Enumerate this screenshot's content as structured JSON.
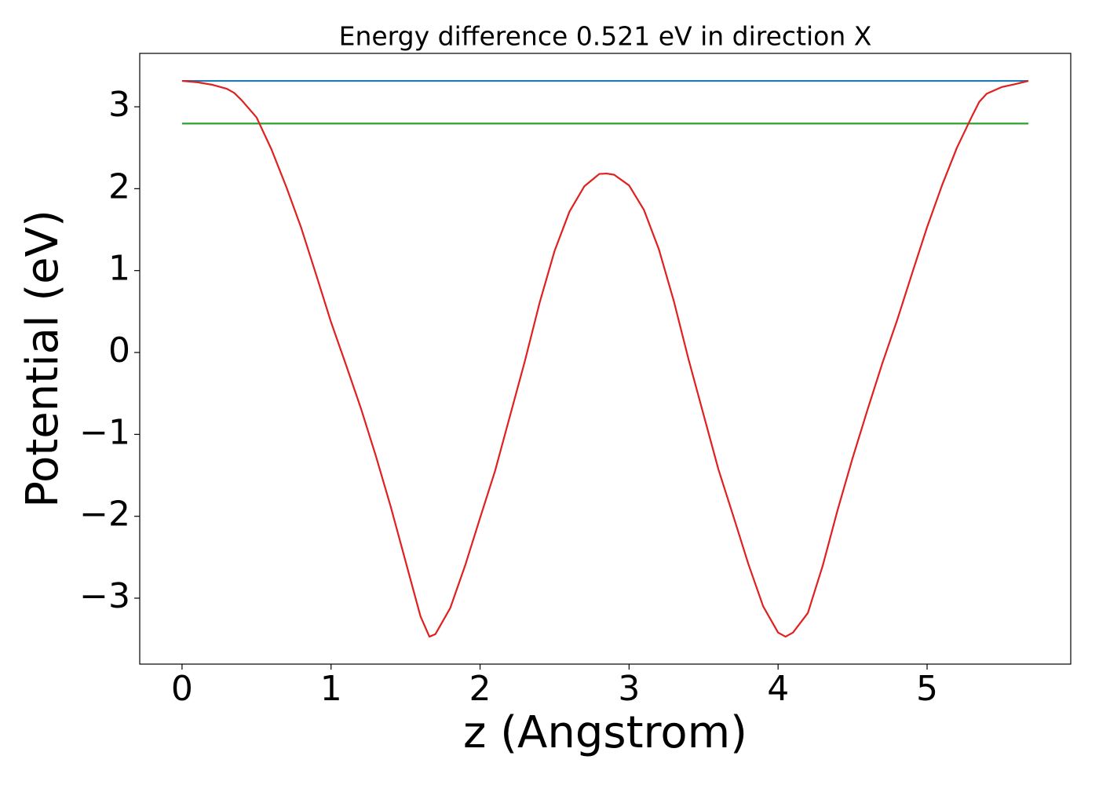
{
  "chart_data": {
    "type": "line",
    "title": "Energy difference 0.521 eV in direction X",
    "xlabel": "z (Angstrom)",
    "ylabel": "Potential (eV)",
    "xlim": [
      -0.284,
      5.964
    ],
    "ylim": [
      -3.805,
      3.652
    ],
    "xticks": [
      0,
      1,
      2,
      3,
      4,
      5
    ],
    "yticks": [
      {
        "value": -3,
        "label": "−3"
      },
      {
        "value": -2,
        "label": "−2"
      },
      {
        "value": -1,
        "label": "−1"
      },
      0,
      1,
      2,
      3
    ],
    "grid": false,
    "series": [
      {
        "color": "#1f77b4",
        "x": [
          0,
          5.68
        ],
        "values": [
          3.316,
          3.316
        ]
      },
      {
        "color": "#2ca02c",
        "x": [
          0,
          5.68
        ],
        "values": [
          2.795,
          2.795
        ]
      },
      {
        "color": "#e0201f",
        "x": [
          0,
          0.1,
          0.2,
          0.3,
          0.35,
          0.4,
          0.5,
          0.6,
          0.7,
          0.8,
          0.9,
          1.0,
          1.1,
          1.2,
          1.3,
          1.4,
          1.5,
          1.6,
          1.66,
          1.7,
          1.8,
          1.9,
          2.0,
          2.1,
          2.2,
          2.3,
          2.4,
          2.5,
          2.6,
          2.7,
          2.8,
          2.85,
          2.9,
          3.0,
          3.1,
          3.2,
          3.3,
          3.4,
          3.5,
          3.6,
          3.7,
          3.8,
          3.9,
          4.0,
          4.05,
          4.1,
          4.2,
          4.3,
          4.4,
          4.5,
          4.6,
          4.7,
          4.8,
          4.9,
          5.0,
          5.1,
          5.2,
          5.3,
          5.35,
          5.4,
          5.5,
          5.6,
          5.68
        ],
        "values": [
          3.316,
          3.3,
          3.27,
          3.22,
          3.17,
          3.08,
          2.87,
          2.48,
          2.02,
          1.52,
          0.95,
          0.37,
          -0.15,
          -0.68,
          -1.26,
          -1.88,
          -2.55,
          -3.22,
          -3.47,
          -3.44,
          -3.12,
          -2.6,
          -2.02,
          -1.45,
          -0.78,
          -0.11,
          0.61,
          1.24,
          1.72,
          2.03,
          2.18,
          2.185,
          2.17,
          2.04,
          1.74,
          1.26,
          0.63,
          -0.09,
          -0.76,
          -1.43,
          -2.0,
          -2.58,
          -3.1,
          -3.42,
          -3.47,
          -3.42,
          -3.18,
          -2.6,
          -1.92,
          -1.29,
          -0.7,
          -0.13,
          0.4,
          0.97,
          1.53,
          2.04,
          2.5,
          2.88,
          3.06,
          3.16,
          3.24,
          3.28,
          3.316
        ]
      }
    ]
  }
}
